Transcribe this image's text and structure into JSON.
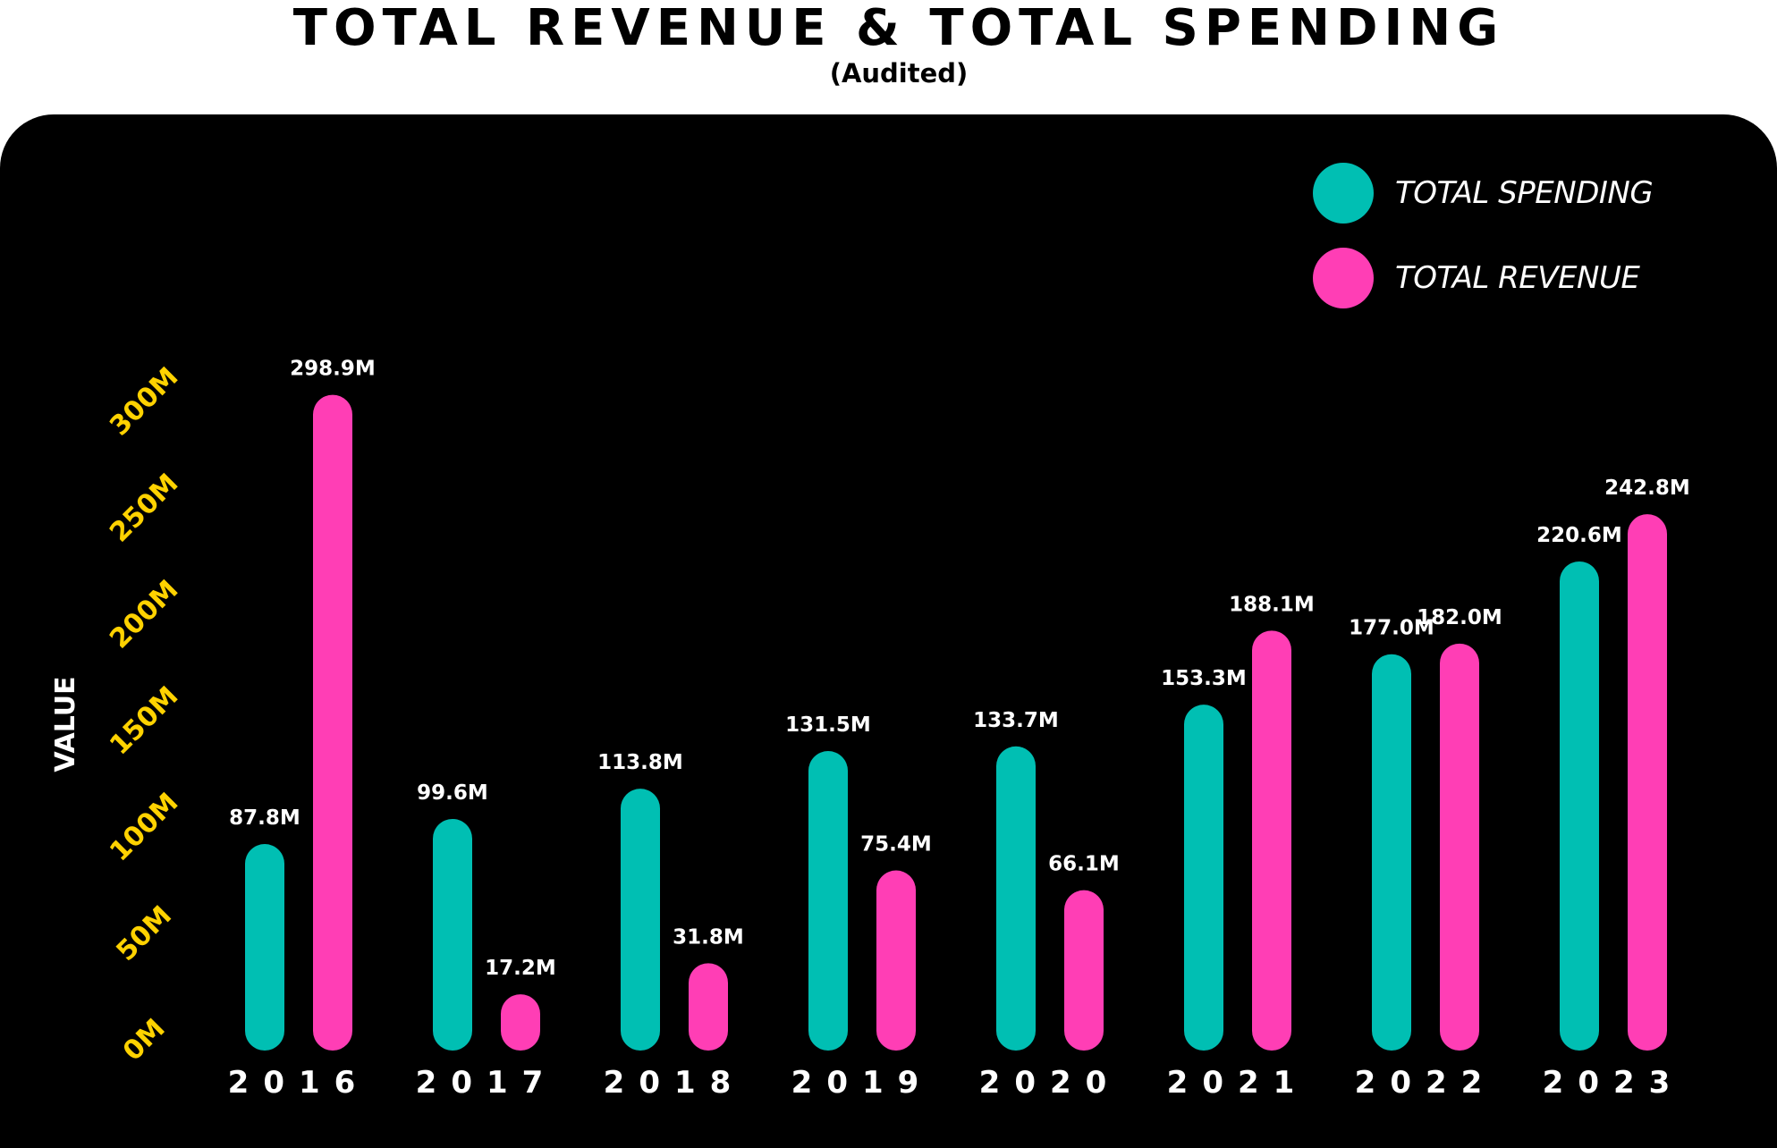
{
  "header": {
    "title": "TOTAL REVENUE &  TOTAL SPENDING",
    "subtitle": "(Audited)"
  },
  "legend": {
    "items": [
      {
        "label": "TOTAL SPENDING",
        "color": "#00bfb3"
      },
      {
        "label": "TOTAL REVENUE",
        "color": "#ff3eb5"
      }
    ]
  },
  "colors": {
    "background": "#000000",
    "spending": "#00bfb3",
    "revenue": "#ff3eb5",
    "axis_ticks": "#ffd200",
    "labels": "#ffffff"
  },
  "chart_data": {
    "type": "bar",
    "title": "TOTAL REVENUE &  TOTAL SPENDING",
    "subtitle": "(Audited)",
    "xlabel": "",
    "ylabel": "VALUE",
    "categories": [
      "2016",
      "2017",
      "2018",
      "2019",
      "2020",
      "2021",
      "2022",
      "2023"
    ],
    "series": [
      {
        "name": "TOTAL SPENDING",
        "values": [
          87.8,
          99.6,
          113.8,
          131.5,
          133.7,
          153.3,
          177.0,
          220.6
        ],
        "labels": [
          "87.8M",
          "99.6M",
          "113.8M",
          "131.5M",
          "133.7M",
          "153.3M",
          "177.0M",
          "220.6M"
        ]
      },
      {
        "name": "TOTAL REVENUE",
        "values": [
          298.9,
          17.2,
          31.8,
          75.4,
          66.1,
          188.1,
          182.0,
          242.8
        ],
        "labels": [
          "298.9M",
          "17.2M",
          "31.8M",
          "75.4M",
          "66.1M",
          "188.1M",
          "182.0M",
          "242.8M"
        ]
      }
    ],
    "y_ticks": [
      0,
      50,
      100,
      150,
      200,
      250,
      300
    ],
    "y_tick_labels": [
      "0M",
      "50M",
      "100M",
      "150M",
      "200M",
      "250M",
      "300M"
    ],
    "ylim": [
      0,
      300
    ],
    "grid": false,
    "legend_position": "top-right"
  }
}
